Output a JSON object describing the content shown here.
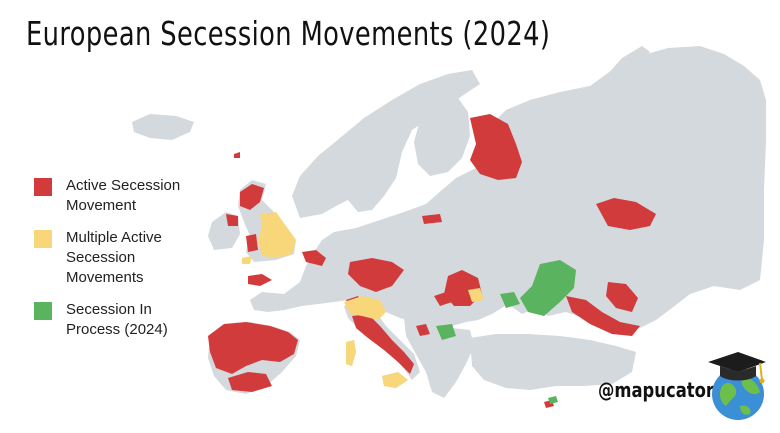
{
  "title": "European Secession Movements (2024)",
  "legend": [
    {
      "label": "Active Secession Movement",
      "color": "#d13b3b"
    },
    {
      "label": "Multiple Active Secession Movements",
      "color": "#f7d77a"
    },
    {
      "label": "Secession In Process (2024)",
      "color": "#5ab35e"
    }
  ],
  "credit": "@mapucator",
  "colors": {
    "land": "#d3d9dd",
    "active": "#d13b3b",
    "multiple": "#f7d77a",
    "process": "#5ab35e"
  },
  "logo": "graduation-cap-globe-icon"
}
